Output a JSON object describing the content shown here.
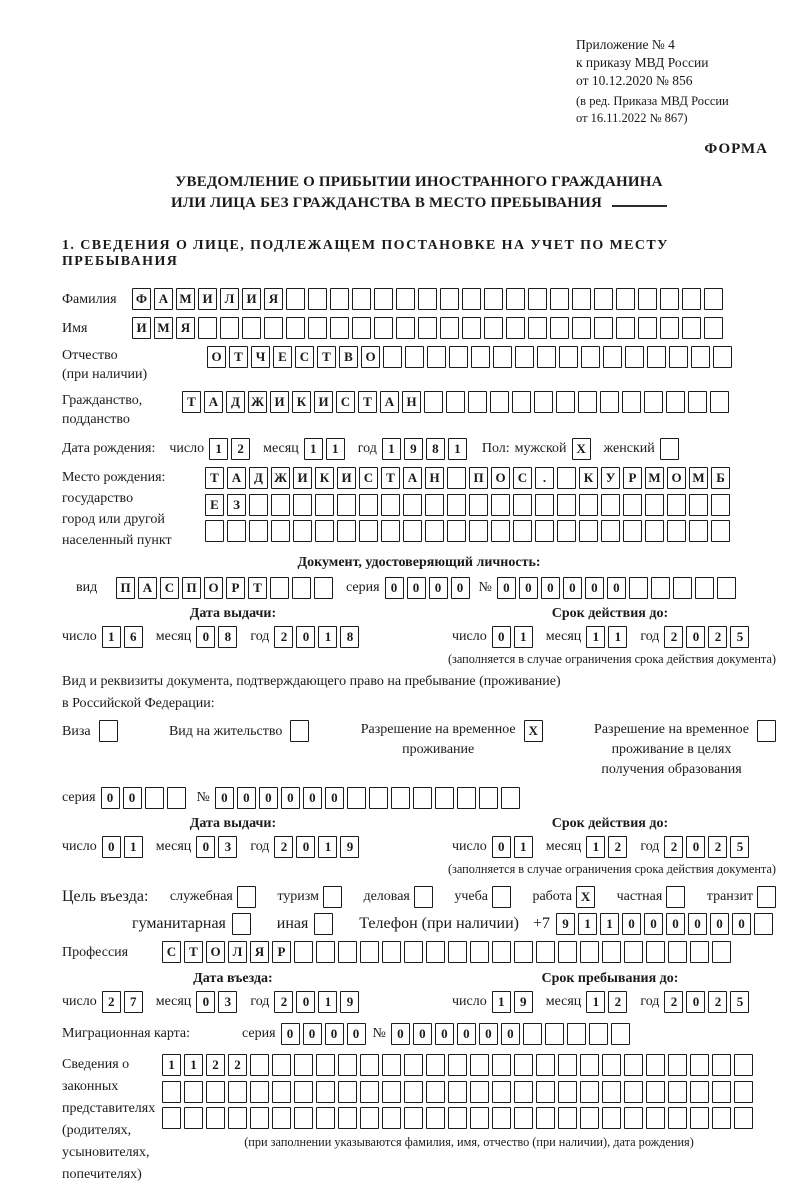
{
  "colors": {
    "ink": "#1a1a1a",
    "paper": "#ffffff",
    "box_border": "#1c1c1c"
  },
  "header": {
    "appendix_line1": "Приложение № 4",
    "appendix_line2": "к приказу МВД России",
    "appendix_line3": "от 10.12.2020 № 856",
    "amendment_line1": "(в ред. Приказа МВД России",
    "amendment_line2": "от 16.11.2022 № 867)",
    "forma": "ФОРМА"
  },
  "title": {
    "line1": "УВЕДОМЛЕНИЕ О ПРИБЫТИИ ИНОСТРАННОГО ГРАЖДАНИНА",
    "line2": "ИЛИ ЛИЦА БЕЗ ГРАЖДАНСТВА В МЕСТО ПРЕБЫВАНИЯ"
  },
  "section1_heading": "1. СВЕДЕНИЯ О ЛИЦЕ, ПОДЛЕЖАЩЕМ ПОСТАНОВКЕ НА УЧЕТ ПО МЕСТУ ПРЕБЫВАНИЯ",
  "labels": {
    "day": "число",
    "month": "месяц",
    "year": "год",
    "series": "серия",
    "number": "№"
  },
  "person": {
    "surname": {
      "label": "Фамилия",
      "value": "ФАМИЛИЯ",
      "len": 27
    },
    "name": {
      "label": "Имя",
      "value": "ИМЯ",
      "len": 27
    },
    "patronymic": {
      "label1": "Отчество",
      "label2": "(при наличии)",
      "value": "ОТЧЕСТВО",
      "len": 24
    },
    "citizenship": {
      "label1": "Гражданство,",
      "label2": "подданство",
      "value": "ТАДЖИКИСТАН",
      "len": 25
    },
    "birth_date": {
      "label": "Дата рождения:",
      "day": "12",
      "month": "11",
      "year": "1981"
    },
    "sex": {
      "label": "Пол:",
      "male": "мужской",
      "male_mark": "X",
      "female": "женский",
      "female_mark": ""
    },
    "birth_place": {
      "label1": "Место рождения:",
      "label2": "государство",
      "label3": "город или другой",
      "label4": "населенный пункт",
      "row1": {
        "value": "ТАДЖИКИСТАН ПОС. КУРМОМБ",
        "len": 24
      },
      "row2": {
        "value": "ЕЗ",
        "len": 24
      },
      "row3": {
        "value": "",
        "len": 24
      }
    }
  },
  "identity_doc": {
    "heading": "Документ, удостоверяющий личность:",
    "type_label": "вид",
    "type": {
      "value": "ПАСПОРТ",
      "len": 10
    },
    "series": {
      "value": "0000",
      "len": 4
    },
    "number": {
      "value": "000000",
      "len": 11
    },
    "issue_title": "Дата выдачи:",
    "issue": {
      "day": "16",
      "month": "08",
      "year": "2018"
    },
    "expiry_title": "Срок действия до:",
    "expiry": {
      "day": "01",
      "month": "11",
      "year": "2025"
    },
    "note": "(заполняется в случае ограничения срока действия документа)"
  },
  "residence_doc": {
    "intro1": "Вид и реквизиты документа, подтверждающего право на пребывание (проживание)",
    "intro2": "в Российской Федерации:",
    "visa_label": "Виза",
    "visa_mark": "",
    "residence_permit_label": "Вид на жительство",
    "residence_permit_mark": "",
    "temp_permit_label1": "Разрешение на временное",
    "temp_permit_label2": "проживание",
    "temp_permit_mark": "X",
    "edu_permit_label1": "Разрешение на временное",
    "edu_permit_label2": "проживание в целях",
    "edu_permit_label3": "получения образования",
    "edu_permit_mark": "",
    "series": {
      "value": "00",
      "len": 4
    },
    "number": {
      "value": "000000",
      "len": 14
    },
    "issue_title": "Дата выдачи:",
    "issue": {
      "day": "01",
      "month": "03",
      "year": "2019"
    },
    "expiry_title": "Срок действия до:",
    "expiry": {
      "day": "01",
      "month": "12",
      "year": "2025"
    },
    "note": "(заполняется в случае ограничения срока действия документа)"
  },
  "entry": {
    "purpose_label": "Цель въезда:",
    "opt_official": "служебная",
    "opt_official_mark": "",
    "opt_tourism": "туризм",
    "opt_tourism_mark": "",
    "opt_business": "деловая",
    "opt_business_mark": "",
    "opt_study": "учеба",
    "opt_study_mark": "",
    "opt_work": "работа",
    "opt_work_mark": "X",
    "opt_private": "частная",
    "opt_private_mark": "",
    "opt_transit": "транзит",
    "opt_transit_mark": "",
    "opt_humanitarian": "гуманитарная",
    "opt_humanitarian_mark": "",
    "opt_other": "иная",
    "opt_other_mark": "",
    "phone_label": "Телефон (при наличии)",
    "phone_prefix": "+7",
    "phone": {
      "value": "911000000",
      "len": 10
    },
    "profession_label": "Профессия",
    "profession": {
      "value": "СТОЛЯР",
      "len": 26
    },
    "entry_date_title": "Дата въезда:",
    "entry_date": {
      "day": "27",
      "month": "03",
      "year": "2019"
    },
    "stay_until_title": "Срок пребывания до:",
    "stay_until": {
      "day": "19",
      "month": "12",
      "year": "2025"
    }
  },
  "migration_card": {
    "label": "Миграционная карта:",
    "series": {
      "value": "0000",
      "len": 4
    },
    "number": {
      "value": "000000",
      "len": 11
    }
  },
  "representatives": {
    "label1": "Сведения о",
    "label2": "законных",
    "label3": "представителях",
    "label4": "(родителях,",
    "label5": "усыновителях,",
    "label6": "попечителях)",
    "row1": {
      "value": "1122",
      "len": 27
    },
    "row2": {
      "value": "",
      "len": 27
    },
    "row3": {
      "value": "",
      "len": 27
    },
    "note": "(при заполнении указываются фамилия, имя, отчество (при наличии), дата рождения)"
  }
}
